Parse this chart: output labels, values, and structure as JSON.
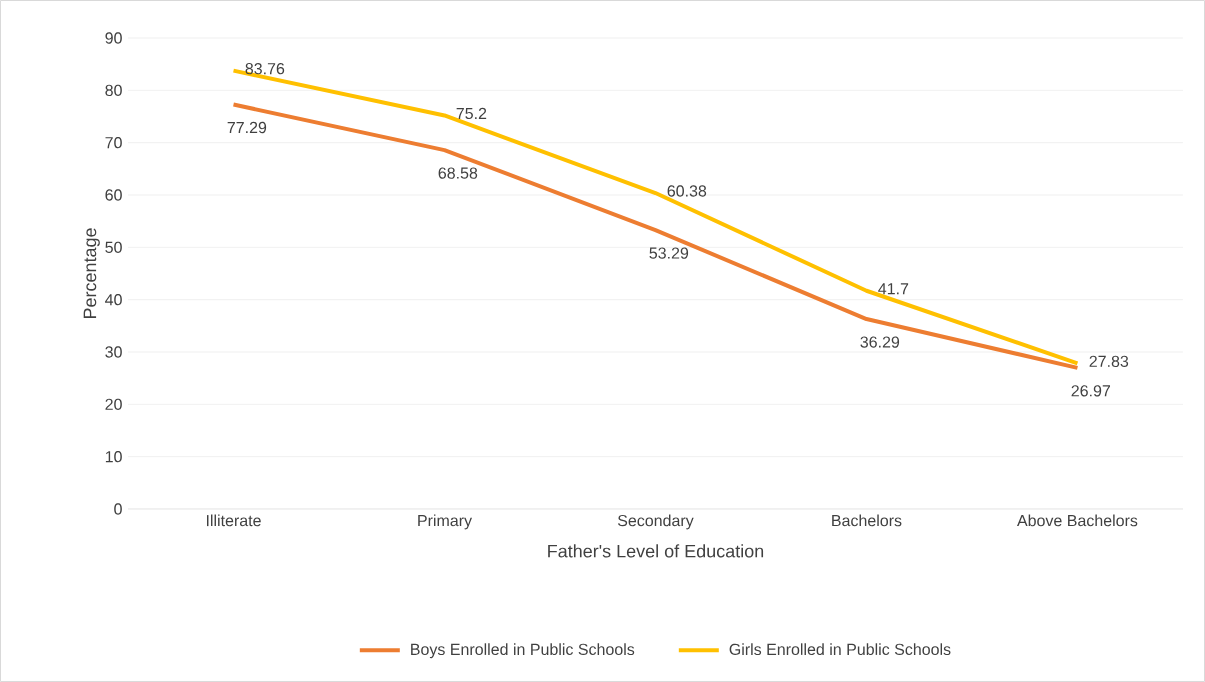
{
  "chart_data": {
    "type": "line",
    "xlabel": "Father's Level of Education",
    "ylabel": "Percentage",
    "categories": [
      "Illiterate",
      "Primary",
      "Secondary",
      "Bachelors",
      "Above Bachelors"
    ],
    "series": [
      {
        "name": "Boys Enrolled in Public Schools",
        "color": "#ed7d31",
        "values": [
          77.29,
          68.58,
          53.29,
          36.29,
          26.97
        ]
      },
      {
        "name": "Girls Enrolled in Public Schools",
        "color": "#ffc000",
        "values": [
          83.76,
          75.2,
          60.38,
          41.7,
          27.83
        ]
      }
    ],
    "ylim": [
      0,
      90
    ],
    "yticks": [
      0,
      10,
      20,
      30,
      40,
      50,
      60,
      70,
      80,
      90
    ],
    "grid": "y",
    "legend": "bottom",
    "marker": "none",
    "line_style": "solid",
    "data_labels": true
  }
}
